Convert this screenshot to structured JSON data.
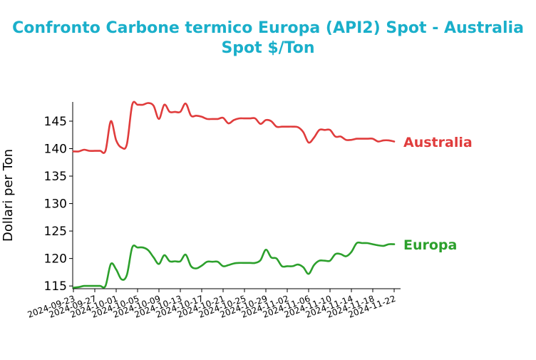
{
  "chart_data": {
    "type": "line",
    "title": "Confronto Carbone termico Europa (API2) Spot - Australia Spot $/Ton",
    "ylabel": "Dollari per Ton",
    "xlabel": "",
    "ylim": [
      114.5,
      148.5
    ],
    "xlim": [
      "2024-09-23",
      "2024-11-22"
    ],
    "yticks": [
      115,
      120,
      125,
      130,
      135,
      140,
      145
    ],
    "xticks": [
      "2024-09-23",
      "2024-09-27",
      "2024-10-01",
      "2024-10-05",
      "2024-10-09",
      "2024-10-13",
      "2024-10-17",
      "2024-10-21",
      "2024-10-25",
      "2024-10-29",
      "2024-11-02",
      "2024-11-06",
      "2024-11-10",
      "2024-11-14",
      "2024-11-18",
      "2024-11-22"
    ],
    "grid": false,
    "legend": "labels at line ends",
    "series": [
      {
        "name": "Australia",
        "color": "#e03c3c",
        "points": [
          [
            "2024-09-23",
            139.5
          ],
          [
            "2024-09-24",
            139.5
          ],
          [
            "2024-09-25",
            139.8
          ],
          [
            "2024-09-26",
            139.6
          ],
          [
            "2024-09-27",
            139.6
          ],
          [
            "2024-09-28",
            139.6
          ],
          [
            "2024-09-29",
            139.6
          ],
          [
            "2024-09-30",
            145.0
          ],
          [
            "2024-10-01",
            141.5
          ],
          [
            "2024-10-02",
            140.2
          ],
          [
            "2024-10-03",
            140.8
          ],
          [
            "2024-10-04",
            148.0
          ],
          [
            "2024-10-05",
            148.0
          ],
          [
            "2024-10-06",
            148.0
          ],
          [
            "2024-10-07",
            148.3
          ],
          [
            "2024-10-08",
            147.8
          ],
          [
            "2024-10-09",
            145.4
          ],
          [
            "2024-10-10",
            148.0
          ],
          [
            "2024-10-11",
            146.7
          ],
          [
            "2024-10-12",
            146.7
          ],
          [
            "2024-10-13",
            146.7
          ],
          [
            "2024-10-14",
            148.2
          ],
          [
            "2024-10-15",
            146.0
          ],
          [
            "2024-10-16",
            146.0
          ],
          [
            "2024-10-17",
            145.8
          ],
          [
            "2024-10-18",
            145.4
          ],
          [
            "2024-10-19",
            145.4
          ],
          [
            "2024-10-20",
            145.4
          ],
          [
            "2024-10-21",
            145.6
          ],
          [
            "2024-10-22",
            144.6
          ],
          [
            "2024-10-23",
            145.2
          ],
          [
            "2024-10-24",
            145.5
          ],
          [
            "2024-10-25",
            145.5
          ],
          [
            "2024-10-26",
            145.5
          ],
          [
            "2024-10-27",
            145.5
          ],
          [
            "2024-10-28",
            144.5
          ],
          [
            "2024-10-29",
            145.2
          ],
          [
            "2024-10-30",
            145.0
          ],
          [
            "2024-10-31",
            144.0
          ],
          [
            "2024-11-01",
            144.0
          ],
          [
            "2024-11-02",
            144.0
          ],
          [
            "2024-11-03",
            144.0
          ],
          [
            "2024-11-04",
            143.9
          ],
          [
            "2024-11-05",
            143.0
          ],
          [
            "2024-11-06",
            141.1
          ],
          [
            "2024-11-07",
            142.0
          ],
          [
            "2024-11-08",
            143.4
          ],
          [
            "2024-11-09",
            143.4
          ],
          [
            "2024-11-10",
            143.4
          ],
          [
            "2024-11-11",
            142.2
          ],
          [
            "2024-11-12",
            142.2
          ],
          [
            "2024-11-13",
            141.6
          ],
          [
            "2024-11-14",
            141.6
          ],
          [
            "2024-11-15",
            141.8
          ],
          [
            "2024-11-16",
            141.8
          ],
          [
            "2024-11-17",
            141.8
          ],
          [
            "2024-11-18",
            141.8
          ],
          [
            "2024-11-19",
            141.3
          ],
          [
            "2024-11-20",
            141.5
          ],
          [
            "2024-11-21",
            141.5
          ],
          [
            "2024-11-22",
            141.3
          ]
        ]
      },
      {
        "name": "Europa",
        "color": "#2ca02c",
        "points": [
          [
            "2024-09-23",
            114.7
          ],
          [
            "2024-09-24",
            114.8
          ],
          [
            "2024-09-25",
            115.0
          ],
          [
            "2024-09-26",
            115.0
          ],
          [
            "2024-09-27",
            115.0
          ],
          [
            "2024-09-28",
            115.0
          ],
          [
            "2024-09-29",
            115.0
          ],
          [
            "2024-09-30",
            119.0
          ],
          [
            "2024-10-01",
            118.0
          ],
          [
            "2024-10-02",
            116.2
          ],
          [
            "2024-10-03",
            117.0
          ],
          [
            "2024-10-04",
            122.0
          ],
          [
            "2024-10-05",
            122.0
          ],
          [
            "2024-10-06",
            122.0
          ],
          [
            "2024-10-07",
            121.5
          ],
          [
            "2024-10-08",
            120.2
          ],
          [
            "2024-10-09",
            119.0
          ],
          [
            "2024-10-10",
            120.6
          ],
          [
            "2024-10-11",
            119.5
          ],
          [
            "2024-10-12",
            119.5
          ],
          [
            "2024-10-13",
            119.5
          ],
          [
            "2024-10-14",
            120.7
          ],
          [
            "2024-10-15",
            118.6
          ],
          [
            "2024-10-16",
            118.2
          ],
          [
            "2024-10-17",
            118.7
          ],
          [
            "2024-10-18",
            119.4
          ],
          [
            "2024-10-19",
            119.4
          ],
          [
            "2024-10-20",
            119.4
          ],
          [
            "2024-10-21",
            118.6
          ],
          [
            "2024-10-22",
            118.8
          ],
          [
            "2024-10-23",
            119.1
          ],
          [
            "2024-10-24",
            119.2
          ],
          [
            "2024-10-25",
            119.2
          ],
          [
            "2024-10-26",
            119.2
          ],
          [
            "2024-10-27",
            119.2
          ],
          [
            "2024-10-28",
            119.7
          ],
          [
            "2024-10-29",
            121.6
          ],
          [
            "2024-10-30",
            120.2
          ],
          [
            "2024-10-31",
            120.0
          ],
          [
            "2024-11-01",
            118.6
          ],
          [
            "2024-11-02",
            118.6
          ],
          [
            "2024-11-03",
            118.6
          ],
          [
            "2024-11-04",
            118.9
          ],
          [
            "2024-11-05",
            118.4
          ],
          [
            "2024-11-06",
            117.2
          ],
          [
            "2024-11-07",
            118.8
          ],
          [
            "2024-11-08",
            119.6
          ],
          [
            "2024-11-09",
            119.6
          ],
          [
            "2024-11-10",
            119.6
          ],
          [
            "2024-11-11",
            120.8
          ],
          [
            "2024-11-12",
            120.8
          ],
          [
            "2024-11-13",
            120.4
          ],
          [
            "2024-11-14",
            121.2
          ],
          [
            "2024-11-15",
            122.8
          ],
          [
            "2024-11-16",
            122.8
          ],
          [
            "2024-11-17",
            122.8
          ],
          [
            "2024-11-18",
            122.6
          ],
          [
            "2024-11-19",
            122.4
          ],
          [
            "2024-11-20",
            122.3
          ],
          [
            "2024-11-21",
            122.6
          ],
          [
            "2024-11-22",
            122.6
          ]
        ]
      }
    ]
  }
}
